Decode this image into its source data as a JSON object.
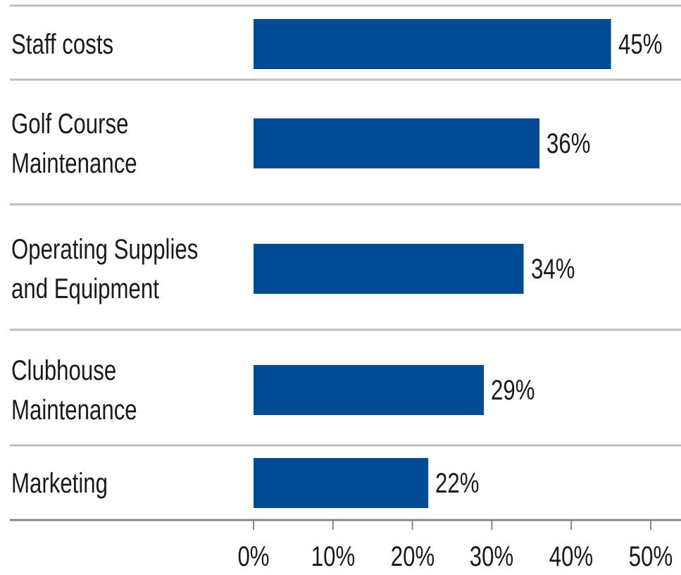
{
  "chart_data": {
    "type": "bar",
    "orientation": "horizontal",
    "categories": [
      "Staff costs",
      "Golf Course Maintenance",
      "Operating Supplies and Equipment",
      "Clubhouse Maintenance",
      "Marketing"
    ],
    "values": [
      45,
      36,
      34,
      29,
      22
    ],
    "value_labels": [
      "45%",
      "36%",
      "34%",
      "29%",
      "22%"
    ],
    "color": "#004b93",
    "xlim": [
      0,
      50
    ],
    "xticks": [
      {
        "value": 0,
        "label": "0%"
      },
      {
        "value": 10,
        "label": "10%"
      },
      {
        "value": 20,
        "label": "20%"
      },
      {
        "value": 30,
        "label": "30%"
      },
      {
        "value": 40,
        "label": "40%"
      },
      {
        "value": 50,
        "label": "50%"
      }
    ]
  }
}
